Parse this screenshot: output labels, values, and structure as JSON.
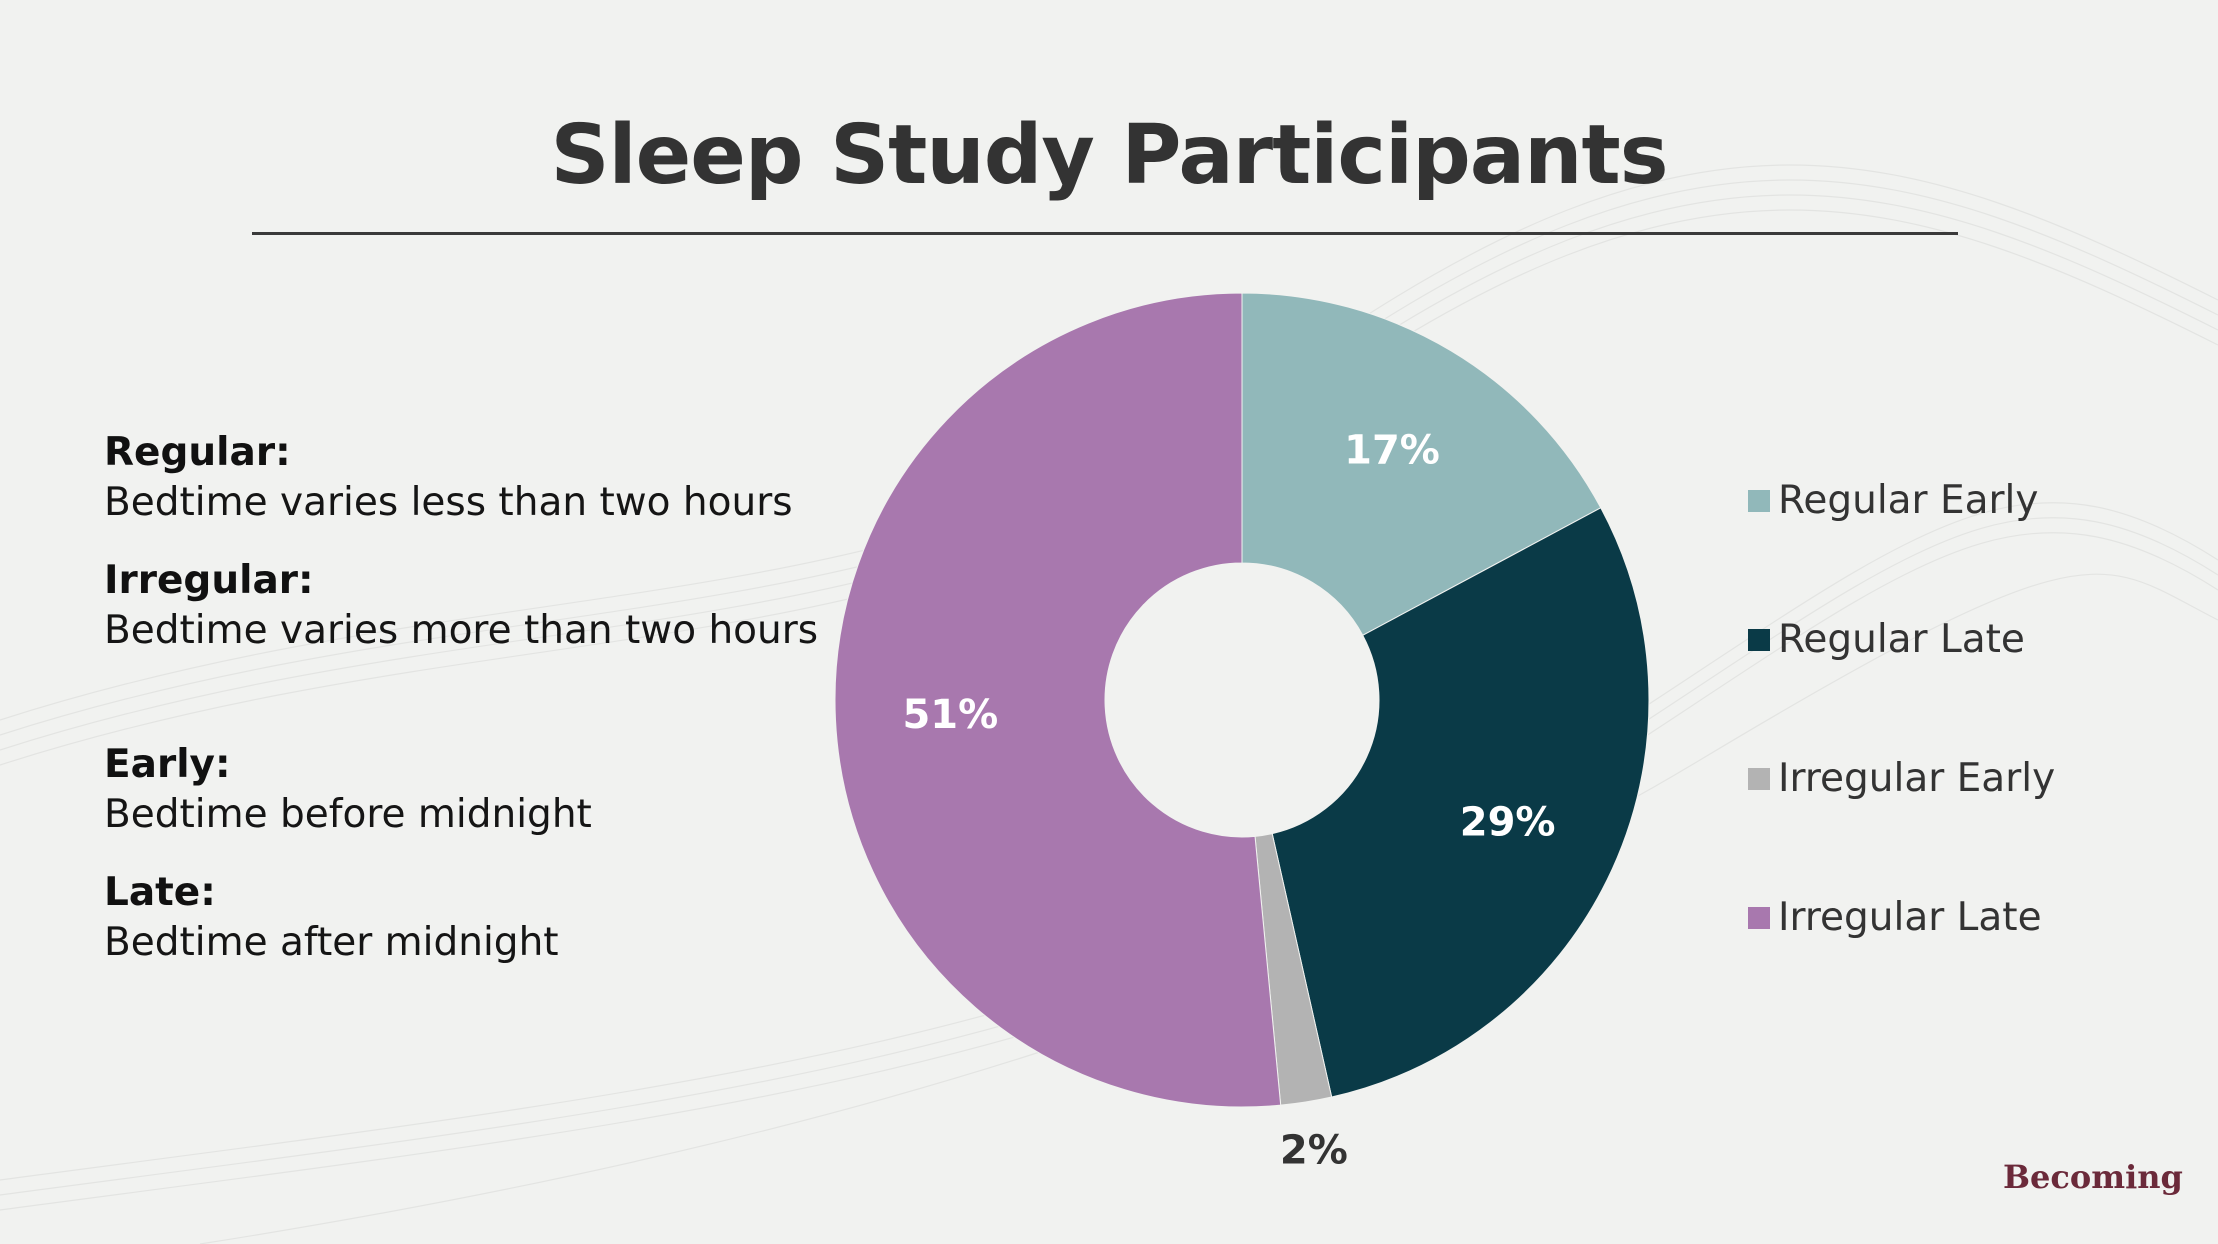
{
  "title": "Sleep Study Participants",
  "definitions": [
    {
      "term": "Regular:",
      "text": "Bedtime varies less than two hours"
    },
    {
      "term": "Irregular:",
      "text": "Bedtime varies more than two hours"
    },
    {
      "term": "Early:",
      "text": "Bedtime before midnight"
    },
    {
      "term": "Late:",
      "text": "Bedtime after midnight"
    }
  ],
  "chart_data": {
    "type": "pie",
    "style": "donut",
    "categories": [
      "Regular Early",
      "Regular Late",
      "Irregular Early",
      "Irregular Late"
    ],
    "values": [
      17,
      29,
      2,
      51
    ],
    "data_labels": [
      "17%",
      "29%",
      "2%",
      "51%"
    ],
    "colors": [
      "#91b8ba",
      "#0a3a47",
      "#b3b3b3",
      "#a878ae"
    ],
    "legend_position": "right"
  },
  "brand": "Becoming"
}
